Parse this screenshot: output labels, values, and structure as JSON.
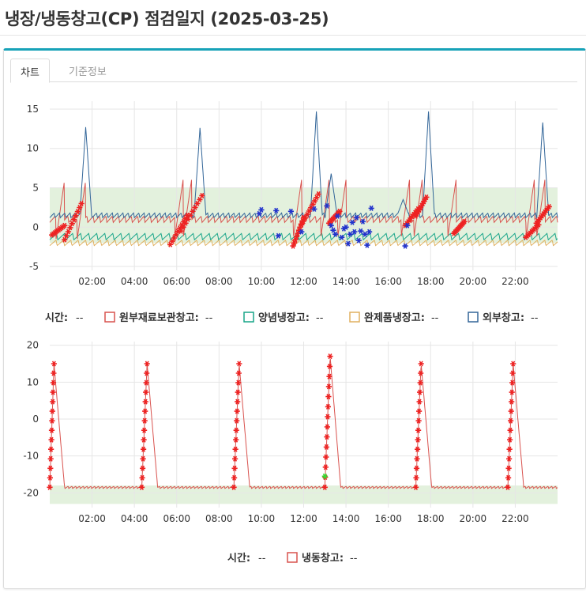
{
  "page": {
    "title": "냉장/냉동창고(CP) 점검일지 (2025-03-25)"
  },
  "tabs": [
    {
      "label": "차트",
      "active": true
    },
    {
      "label": "기준정보",
      "active": false
    }
  ],
  "colors": {
    "accent": "#17a2b8",
    "band": "#e3f1dd",
    "grid": "#e6e6e6",
    "alarm_marker": "#ee2222",
    "alt_marker": "#2233cc",
    "ok_marker": "#33dd33"
  },
  "chart_data": [
    {
      "type": "line",
      "x_unit": "hour",
      "xlim": [
        0,
        24
      ],
      "x_tick_labels": [
        "02:00",
        "04:00",
        "06:00",
        "08:00",
        "10:00",
        "12:00",
        "14:00",
        "16:00",
        "18:00",
        "20:00",
        "22:00"
      ],
      "x_ticks": [
        2,
        4,
        6,
        8,
        10,
        12,
        14,
        16,
        18,
        20,
        22
      ],
      "ylim": [
        -5.5,
        16
      ],
      "y_ticks": [
        15,
        10,
        5,
        0,
        -5
      ],
      "normal_band": [
        -2,
        5
      ],
      "grid": true,
      "legend_position": "bottom",
      "legend_time_label": "시간:",
      "legend_time_value": "--",
      "series": [
        {
          "name": "원부재료보관창고:",
          "value": "--",
          "color": "#d9534f",
          "baseline": 1.0,
          "amplitude": 0.8,
          "cycle_hours": 0.3,
          "defrost_ramp_start": [
            0.3,
            1.3,
            5.9,
            6.3,
            11.5,
            12.8,
            13.6,
            16.6,
            17.2,
            18.8,
            22.5,
            23.0
          ],
          "defrost_ramp_from": -1.5,
          "defrost_ramp_to": 6
        },
        {
          "name": "양념냉장고:",
          "value": "--",
          "color": "#18a589",
          "baseline": -1.2,
          "amplitude": 0.8,
          "cycle_hours": 0.38
        },
        {
          "name": "완제품냉장고:",
          "value": "--",
          "color": "#e0b060",
          "baseline": -2.0,
          "amplitude": 0.7,
          "cycle_hours": 0.35
        },
        {
          "name": "외부창고:",
          "value": "--",
          "color": "#336699",
          "baseline": 1.5,
          "amplitude": 0.6,
          "cycle_hours": 0.25,
          "peaks": [
            {
              "x": 1.7,
              "y": 12.7
            },
            {
              "x": 7.1,
              "y": 12.6
            },
            {
              "x": 12.6,
              "y": 14.7
            },
            {
              "x": 13.3,
              "y": 6.8
            },
            {
              "x": 16.7,
              "y": 3.5
            },
            {
              "x": 17.9,
              "y": 14.7
            },
            {
              "x": 23.3,
              "y": 13.3
            }
          ]
        }
      ],
      "alarm_ramps": [
        {
          "x0": 0.1,
          "x1": 0.7,
          "y0": -1.0,
          "y1": 0.2
        },
        {
          "x0": 0.7,
          "x1": 1.5,
          "y0": -1.6,
          "y1": 3.0
        },
        {
          "x0": 5.7,
          "x1": 6.5,
          "y0": -2.2,
          "y1": 1.5
        },
        {
          "x0": 6.2,
          "x1": 7.2,
          "y0": -0.5,
          "y1": 4.0
        },
        {
          "x0": 11.5,
          "x1": 12.0,
          "y0": -2.4,
          "y1": 1.2
        },
        {
          "x0": 11.9,
          "x1": 12.7,
          "y0": 0.3,
          "y1": 4.2
        },
        {
          "x0": 13.2,
          "x1": 13.7,
          "y0": 0.5,
          "y1": 2.0
        },
        {
          "x0": 16.8,
          "x1": 17.4,
          "y0": 0.2,
          "y1": 2.3
        },
        {
          "x0": 17.3,
          "x1": 17.8,
          "y0": 1.4,
          "y1": 3.8
        },
        {
          "x0": 19.1,
          "x1": 19.6,
          "y0": -0.8,
          "y1": 0.7
        },
        {
          "x0": 22.5,
          "x1": 23.1,
          "y0": -1.3,
          "y1": 0.3
        },
        {
          "x0": 23.0,
          "x1": 23.6,
          "y0": 0.5,
          "y1": 2.6
        }
      ],
      "alt_markers": [
        {
          "x": 9.9,
          "y": 1.7
        },
        {
          "x": 10.0,
          "y": 2.2
        },
        {
          "x": 10.7,
          "y": 2.1
        },
        {
          "x": 10.8,
          "y": -1.1
        },
        {
          "x": 11.4,
          "y": 2.0
        },
        {
          "x": 11.9,
          "y": -0.6
        },
        {
          "x": 12.5,
          "y": 2.3
        },
        {
          "x": 13.1,
          "y": 2.7
        },
        {
          "x": 13.3,
          "y": 0.2
        },
        {
          "x": 13.4,
          "y": -0.4
        },
        {
          "x": 13.5,
          "y": -0.9
        },
        {
          "x": 13.6,
          "y": 1.4
        },
        {
          "x": 13.8,
          "y": -1.3
        },
        {
          "x": 13.9,
          "y": -0.2
        },
        {
          "x": 14.0,
          "y": 0.0
        },
        {
          "x": 14.1,
          "y": -2.1
        },
        {
          "x": 14.2,
          "y": -0.9
        },
        {
          "x": 14.3,
          "y": 0.6
        },
        {
          "x": 14.4,
          "y": -0.6
        },
        {
          "x": 14.5,
          "y": 1.2
        },
        {
          "x": 14.6,
          "y": -1.7
        },
        {
          "x": 14.7,
          "y": -0.5
        },
        {
          "x": 14.8,
          "y": 0.7
        },
        {
          "x": 14.9,
          "y": -0.9
        },
        {
          "x": 15.0,
          "y": -2.3
        },
        {
          "x": 15.1,
          "y": -0.6
        },
        {
          "x": 15.2,
          "y": 2.4
        },
        {
          "x": 16.8,
          "y": -2.4
        },
        {
          "x": 16.9,
          "y": 0.2
        }
      ]
    },
    {
      "type": "line",
      "x_unit": "hour",
      "xlim": [
        0,
        24
      ],
      "x_tick_labels": [
        "02:00",
        "04:00",
        "06:00",
        "08:00",
        "10:00",
        "12:00",
        "14:00",
        "16:00",
        "18:00",
        "20:00",
        "22:00"
      ],
      "x_ticks": [
        2,
        4,
        6,
        8,
        10,
        12,
        14,
        16,
        18,
        20,
        22
      ],
      "ylim": [
        -24,
        21
      ],
      "y_ticks": [
        20,
        10,
        0,
        -10,
        -20
      ],
      "normal_band": [
        -23,
        -18
      ],
      "grid": true,
      "legend_position": "bottom",
      "legend_time_label": "시간:",
      "legend_time_value": "--",
      "series": [
        {
          "name": "냉동창고:",
          "value": "--",
          "color": "#d9534f",
          "baseline": -18.5,
          "amplitude": 0.6,
          "cycle_hours": 0.18,
          "defrost_events": [
            {
              "start": 0.0,
              "peak": 0.2,
              "peak_y": 15.0
            },
            {
              "start": 4.35,
              "peak": 4.6,
              "peak_y": 15.0
            },
            {
              "start": 8.7,
              "peak": 8.95,
              "peak_y": 15.0
            },
            {
              "start": 13.0,
              "peak": 13.25,
              "peak_y": 17.0
            },
            {
              "start": 17.3,
              "peak": 17.55,
              "peak_y": 15.0
            },
            {
              "start": 21.65,
              "peak": 21.9,
              "peak_y": 15.0
            }
          ]
        }
      ],
      "ok_marker": {
        "x": 13.0,
        "y": -15.5
      }
    }
  ]
}
